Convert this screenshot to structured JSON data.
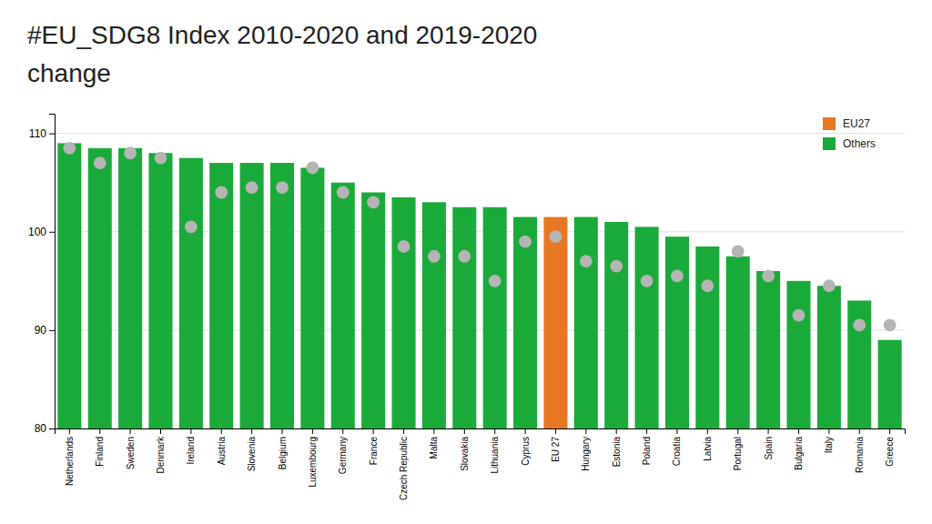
{
  "chart_data": {
    "type": "bar",
    "title": "#EU_SDG8 Index 2010-2020 and 2019-2020",
    "subtitle": "change",
    "categories": [
      "Netherlands",
      "Finland",
      "Sweden",
      "Denmark",
      "Ireland",
      "Austria",
      "Slovenia",
      "Belgium",
      "Luxembourg",
      "Germany",
      "France",
      "Czech Republic",
      "Malta",
      "Slovakia",
      "Lithuania",
      "Cyprus",
      "EU 27",
      "Hungary",
      "Estonia",
      "Poland",
      "Croatia",
      "Latvia",
      "Portugal",
      "Spain",
      "Bulgaria",
      "Italy",
      "Romania",
      "Greece"
    ],
    "series": [
      {
        "name": "EU27",
        "type": "bar",
        "color": "#e87722",
        "values": [
          null,
          null,
          null,
          null,
          null,
          null,
          null,
          null,
          null,
          null,
          null,
          null,
          null,
          null,
          null,
          null,
          101.5,
          null,
          null,
          null,
          null,
          null,
          null,
          null,
          null,
          null,
          null,
          null
        ]
      },
      {
        "name": "Others",
        "type": "bar",
        "color": "#1aaa3a",
        "values": [
          109.0,
          108.5,
          108.5,
          108.0,
          107.5,
          107.0,
          107.0,
          107.0,
          106.5,
          105.0,
          104.0,
          103.5,
          103.0,
          102.5,
          102.5,
          101.5,
          null,
          101.5,
          101.0,
          100.5,
          99.5,
          98.5,
          97.5,
          96.0,
          95.0,
          94.5,
          93.0,
          89.0
        ]
      },
      {
        "type": "scatter",
        "color": "#b5b5b5",
        "marker": "circle",
        "values": [
          108.5,
          107.0,
          108.0,
          107.5,
          100.5,
          104.0,
          104.5,
          104.5,
          106.5,
          104.0,
          103.0,
          98.5,
          97.5,
          97.5,
          95.0,
          99.0,
          99.5,
          97.0,
          96.5,
          95.0,
          95.5,
          94.5,
          98.0,
          95.5,
          91.5,
          94.5,
          90.5,
          90.5
        ]
      }
    ],
    "ylim": [
      80,
      112
    ],
    "yticks": [
      80,
      90,
      100,
      110
    ],
    "grid": true,
    "legend": "upper right"
  }
}
